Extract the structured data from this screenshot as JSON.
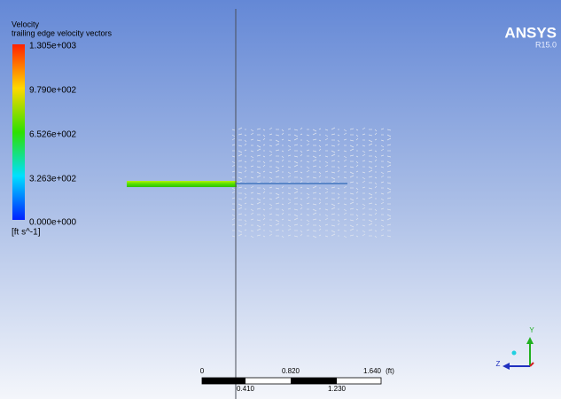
{
  "legend": {
    "title": "Velocity",
    "subtitle": "trailing edge velocity vectors",
    "labels": [
      "1.305e+003",
      "9.790e+002",
      "6.526e+002",
      "3.263e+002",
      "0.000e+000"
    ],
    "units": "[ft s^-1]"
  },
  "logo": {
    "name": "ANSYS",
    "version": "R15.0"
  },
  "scale_bar": {
    "top_labels": [
      "0",
      "0.820",
      "1.640"
    ],
    "unit": "(ft)",
    "bottom_labels": [
      "0.410",
      "1.230"
    ]
  },
  "triad": {
    "y": "Y",
    "z": "Z"
  }
}
